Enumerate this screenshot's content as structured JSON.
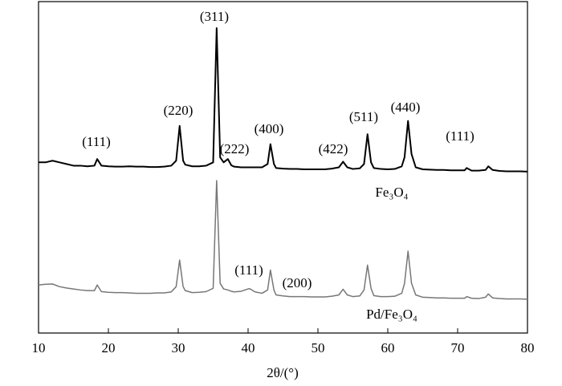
{
  "chart_data": {
    "type": "line",
    "x_label": "2θ/(°)",
    "x": [
      10,
      11,
      12,
      13,
      14,
      15,
      16,
      17,
      18,
      18.4,
      19,
      20,
      21,
      22,
      23,
      24,
      25,
      26,
      27,
      28,
      29,
      29.7,
      30.2,
      30.7,
      31,
      32,
      33,
      34,
      35,
      35.5,
      36,
      36.5,
      37.1,
      37.6,
      38,
      39,
      40,
      40.2,
      41,
      42,
      42.8,
      43.2,
      43.7,
      44,
      45,
      46,
      47,
      48,
      49,
      50,
      51,
      52,
      53,
      53.6,
      54.2,
      55,
      56,
      56.6,
      57.1,
      57.6,
      58,
      59,
      60,
      61,
      62,
      62.4,
      62.9,
      63.4,
      64,
      65,
      66,
      67,
      68,
      69,
      70,
      71,
      71.3,
      72,
      73,
      74,
      74.4,
      75,
      76,
      77,
      78,
      79,
      80
    ],
    "series": [
      {
        "name": "Fe₃O₄",
        "color": "#000000",
        "values": [
          51.5,
          51.5,
          52,
          51.5,
          51,
          50.5,
          50.5,
          50.3,
          50.5,
          52.5,
          50.5,
          50.3,
          50.2,
          50.2,
          50.3,
          50.2,
          50.2,
          50.1,
          50.1,
          50.2,
          50.5,
          52,
          62.5,
          52,
          50.8,
          50.3,
          50.3,
          50.5,
          51.5,
          92,
          53,
          51.5,
          52.5,
          50.6,
          50.2,
          50,
          50,
          50,
          50,
          50,
          51,
          57,
          51,
          49.8,
          49.6,
          49.5,
          49.5,
          49.4,
          49.4,
          49.4,
          49.4,
          49.6,
          50,
          51.7,
          50,
          49.5,
          49.7,
          51,
          60,
          51.5,
          49.8,
          49.5,
          49.4,
          49.5,
          50.3,
          53,
          64,
          54,
          50,
          49.4,
          49.3,
          49.2,
          49.2,
          49.1,
          49.1,
          49.1,
          49.8,
          49,
          49,
          49.2,
          50.3,
          49.2,
          48.9,
          48.8,
          48.8,
          48.8,
          48.7
        ]
      },
      {
        "name": "Pd/Fe₃O₄",
        "color": "#777777",
        "values": [
          14.5,
          14.7,
          14.8,
          14,
          13.6,
          13.3,
          13,
          12.8,
          12.8,
          14.5,
          12.5,
          12.3,
          12.2,
          12.2,
          12.1,
          12,
          12,
          12,
          12.1,
          12.1,
          12.4,
          14,
          22,
          14,
          12.8,
          12.2,
          12.3,
          12.5,
          13.5,
          46,
          15,
          13.3,
          13,
          12.6,
          12.4,
          12.6,
          13.3,
          13.4,
          12.4,
          12,
          13,
          19,
          13,
          11.5,
          11.2,
          11,
          11,
          11,
          10.9,
          10.9,
          10.9,
          11.1,
          11.5,
          13.2,
          11.5,
          11,
          11.2,
          13,
          20.5,
          13.5,
          11.3,
          11,
          11,
          11.1,
          12,
          15,
          24.7,
          15,
          11.5,
          10.8,
          10.7,
          10.6,
          10.6,
          10.5,
          10.5,
          10.5,
          11,
          10.5,
          10.4,
          10.8,
          11.8,
          10.6,
          10.4,
          10.3,
          10.3,
          10.3,
          10.2
        ]
      }
    ],
    "annotations": [
      "(111)",
      "(220)",
      "(311)",
      "(222)",
      "(400)",
      "(422)",
      "(511)",
      "(440)",
      "(111)",
      "(111)",
      "(200)"
    ],
    "xlim": [
      10,
      80
    ],
    "xticks": [
      10,
      20,
      30,
      40,
      50,
      60,
      70,
      80
    ],
    "ylim": [
      0,
      100
    ]
  }
}
